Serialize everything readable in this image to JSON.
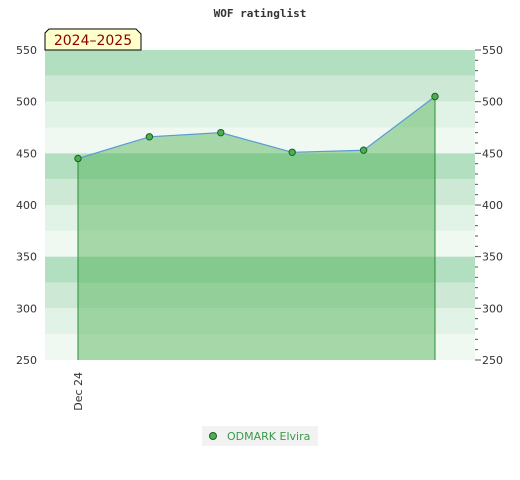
{
  "chart_data": {
    "type": "area",
    "title": "WOF ratinglist",
    "season_label": "2024–2025",
    "x": [
      "Dec 24",
      "",
      "",
      "",
      "",
      ""
    ],
    "x_tick_labels": [
      "Dec 24"
    ],
    "series": [
      {
        "name": "ODMARK Elvira",
        "values": [
          445,
          466,
          470,
          451,
          453,
          505
        ]
      }
    ],
    "ylim": [
      250,
      550
    ],
    "y_ticks": [
      250,
      300,
      350,
      400,
      450,
      500,
      550
    ],
    "y_ticks_both_sides": true,
    "legend_position": "bottom",
    "colors": {
      "line": "#5b9bd5",
      "fill": "#4caf50",
      "marker": "#4caf50",
      "marker_edge": "#1e5e27",
      "legend_text": "#3a9a4a",
      "band_dark": "#b3dfc1",
      "band_mid": "#cde9d6",
      "band_light": "#e1f2e6",
      "band_lightest": "#f0f8f2"
    }
  }
}
